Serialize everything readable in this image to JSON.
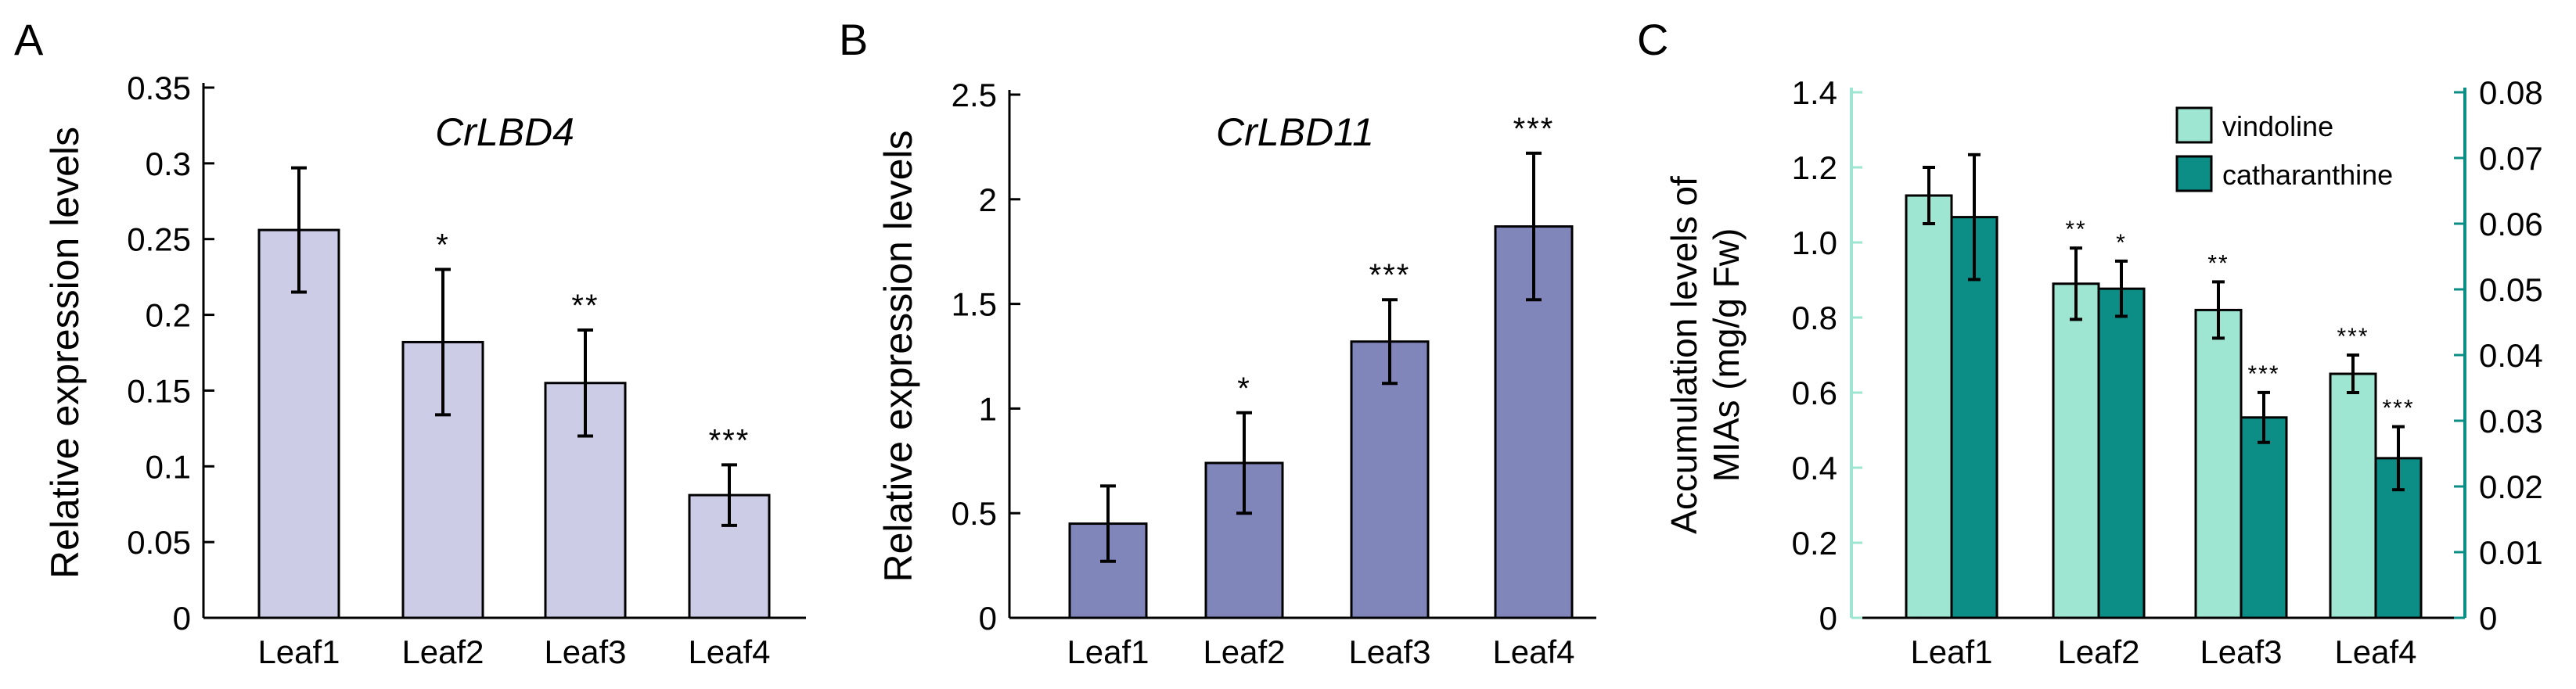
{
  "chart_data": [
    {
      "panel_label": "A",
      "type": "bar",
      "title": "CrLBD4",
      "ylabel": "Relative expression levels",
      "categories": [
        "Leaf1",
        "Leaf2",
        "Leaf3",
        "Leaf4"
      ],
      "values": [
        0.256,
        0.182,
        0.155,
        0.081
      ],
      "errors": [
        0.041,
        0.048,
        0.035,
        0.02
      ],
      "significance": [
        "",
        "*",
        "**",
        "***"
      ],
      "ylim": [
        0,
        0.35
      ],
      "yticks": [
        0,
        0.05,
        0.1,
        0.15,
        0.2,
        0.25,
        0.3,
        0.35
      ],
      "ytick_labels": [
        "0",
        "0.05",
        "0.1",
        "0.15",
        "0.2",
        "0.25",
        "0.3",
        "0.35"
      ],
      "bar_color": "#cccce6"
    },
    {
      "panel_label": "B",
      "type": "bar",
      "title": "CrLBD11",
      "ylabel": "Relative expression levels",
      "categories": [
        "Leaf1",
        "Leaf2",
        "Leaf3",
        "Leaf4"
      ],
      "values": [
        0.45,
        0.74,
        1.32,
        1.87
      ],
      "errors": [
        0.18,
        0.24,
        0.2,
        0.35
      ],
      "significance": [
        "",
        "*",
        "***",
        "***"
      ],
      "ylim": [
        0,
        2.5
      ],
      "yticks": [
        0,
        0.5,
        1,
        1.5,
        2,
        2.5
      ],
      "ytick_labels": [
        "0",
        "0.5",
        "1",
        "1.5",
        "2",
        "2.5"
      ],
      "bar_color": "#8086ba"
    },
    {
      "panel_label": "C",
      "type": "bar",
      "ylabel": "Accumulation levels of MIAs (mg/g Fw)",
      "ylabel_lines": [
        "Accumulation levels of",
        "MIAs (mg/g Fw)"
      ],
      "categories": [
        "Leaf1",
        "Leaf2",
        "Leaf3",
        "Leaf4"
      ],
      "series": [
        {
          "name": "vindoline",
          "axis": "left",
          "values": [
            1.125,
            0.89,
            0.82,
            0.65
          ],
          "errors": [
            0.075,
            0.095,
            0.075,
            0.05
          ],
          "significance": [
            "",
            "**",
            "**",
            "***"
          ],
          "color": "#9ee6d2"
        },
        {
          "name": "catharanthine",
          "axis": "right",
          "values": [
            0.061,
            0.0501,
            0.0305,
            0.0243
          ],
          "errors": [
            0.0095,
            0.0042,
            0.0038,
            0.0048
          ],
          "significance": [
            "",
            "*",
            "***",
            "***"
          ],
          "color": "#0c8e86"
        }
      ],
      "ylim": [
        0,
        1.4
      ],
      "yticks": [
        0,
        0.2,
        0.4,
        0.6,
        0.8,
        1.0,
        1.2,
        1.4
      ],
      "ytick_labels": [
        "0",
        "0.2",
        "0.4",
        "0.6",
        "0.8",
        "1.0",
        "1.2",
        "1.4"
      ],
      "y2lim": [
        0,
        0.08
      ],
      "y2ticks": [
        0,
        0.01,
        0.02,
        0.03,
        0.04,
        0.05,
        0.06,
        0.07,
        0.08
      ],
      "y2tick_labels": [
        "0",
        "0.01",
        "0.02",
        "0.03",
        "0.04",
        "0.05",
        "0.06",
        "0.07",
        "0.08"
      ],
      "left_axis_color": "#9ee6d2",
      "right_axis_color": "#0c8e86",
      "legend_position": "top-right"
    }
  ]
}
